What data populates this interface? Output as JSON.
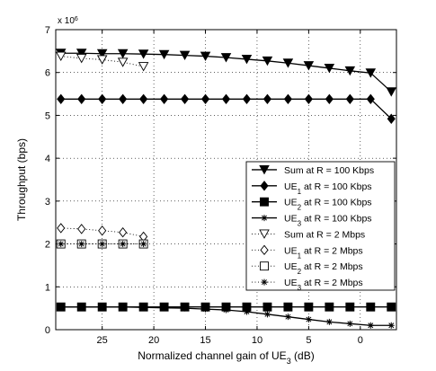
{
  "chart_data": {
    "type": "line",
    "title": "",
    "xlabel": "Normalized channel gain of UE_3 (dB)",
    "ylabel": "Throughput (bps)",
    "y_multiplier_label": "x 10^6",
    "xlim": [
      29.5,
      -3.5
    ],
    "x_reversed": true,
    "ylim": [
      0,
      7
    ],
    "x_ticks": [
      25,
      20,
      15,
      10,
      5,
      0
    ],
    "y_ticks": [
      0,
      1,
      2,
      3,
      4,
      5,
      6,
      7
    ],
    "grid": true,
    "legend_position": "right",
    "series": [
      {
        "name": "Sum at R = 100 Kbps",
        "marker": "triangle-down",
        "line": "solid",
        "filled": true,
        "x": [
          29,
          27,
          25,
          23,
          21,
          19,
          17,
          15,
          13,
          11,
          9,
          7,
          5,
          3,
          1,
          -1,
          -3
        ],
        "y": [
          6.45,
          6.45,
          6.44,
          6.44,
          6.43,
          6.42,
          6.4,
          6.38,
          6.35,
          6.31,
          6.27,
          6.22,
          6.16,
          6.1,
          6.04,
          5.99,
          5.55
        ]
      },
      {
        "name": "UE_1 at R = 100 Kbps",
        "marker": "diamond",
        "line": "solid",
        "filled": true,
        "x": [
          29,
          27,
          25,
          23,
          21,
          19,
          17,
          15,
          13,
          11,
          9,
          7,
          5,
          3,
          1,
          -1,
          -3
        ],
        "y": [
          5.38,
          5.38,
          5.38,
          5.38,
          5.38,
          5.38,
          5.38,
          5.38,
          5.38,
          5.38,
          5.38,
          5.38,
          5.38,
          5.38,
          5.38,
          5.38,
          4.92
        ]
      },
      {
        "name": "UE_2 at R = 100 Kbps",
        "marker": "square",
        "line": "solid",
        "filled": true,
        "x": [
          29,
          27,
          25,
          23,
          21,
          19,
          17,
          15,
          13,
          11,
          9,
          7,
          5,
          3,
          1,
          -1,
          -3
        ],
        "y": [
          0.53,
          0.53,
          0.53,
          0.53,
          0.53,
          0.53,
          0.53,
          0.53,
          0.53,
          0.53,
          0.53,
          0.53,
          0.53,
          0.53,
          0.53,
          0.53,
          0.53
        ]
      },
      {
        "name": "UE_3 at R = 100 Kbps",
        "marker": "star",
        "line": "solid",
        "filled": true,
        "x": [
          29,
          27,
          25,
          23,
          21,
          19,
          17,
          15,
          13,
          11,
          9,
          7,
          5,
          3,
          1,
          -1,
          -3
        ],
        "y": [
          0.53,
          0.53,
          0.53,
          0.53,
          0.52,
          0.51,
          0.5,
          0.48,
          0.46,
          0.42,
          0.36,
          0.3,
          0.24,
          0.18,
          0.14,
          0.1,
          0.1
        ]
      },
      {
        "name": "Sum at R = 2 Mbps",
        "marker": "triangle-down",
        "line": "dotted",
        "filled": false,
        "x": [
          29,
          27,
          25,
          23,
          21
        ],
        "y": [
          6.38,
          6.33,
          6.3,
          6.24,
          6.14
        ]
      },
      {
        "name": "UE_1 at R = 2 Mbps",
        "marker": "diamond",
        "line": "dotted",
        "filled": false,
        "x": [
          29,
          27,
          25,
          23,
          21
        ],
        "y": [
          2.37,
          2.35,
          2.31,
          2.27,
          2.17
        ]
      },
      {
        "name": "UE_2 at R = 2 Mbps",
        "marker": "square",
        "line": "dotted",
        "filled": false,
        "x": [
          29,
          27,
          25,
          23,
          21
        ],
        "y": [
          2.0,
          2.0,
          2.0,
          2.0,
          2.0
        ]
      },
      {
        "name": "UE_3 at R = 2 Mbps",
        "marker": "star",
        "line": "dotted",
        "filled": false,
        "x": [
          29,
          27,
          25,
          23,
          21
        ],
        "y": [
          2.0,
          2.0,
          2.0,
          2.0,
          2.0
        ]
      }
    ]
  }
}
